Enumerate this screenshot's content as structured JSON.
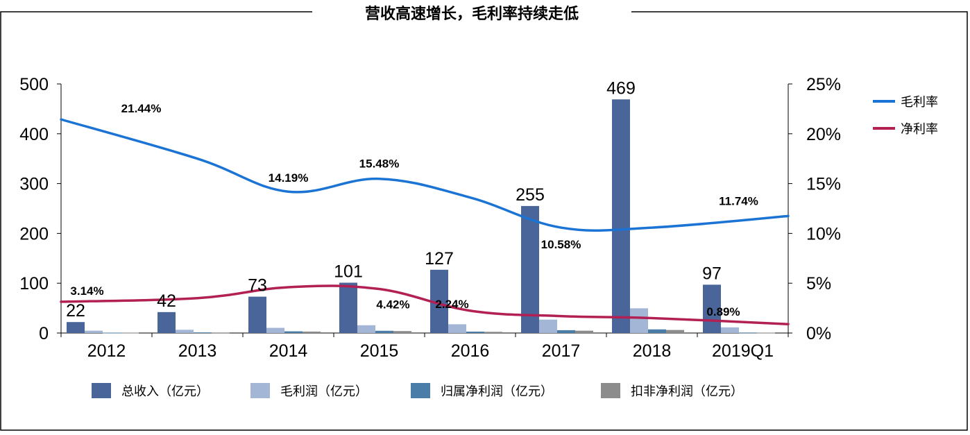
{
  "chart_data": {
    "type": "bar",
    "title": "营收高速增长，毛利率持续走低",
    "categories": [
      "2012",
      "2013",
      "2014",
      "2015",
      "2016",
      "2017",
      "2018",
      "2019Q1"
    ],
    "left_axis": {
      "ylim": [
        0,
        500
      ],
      "ticks": [
        "0",
        "100",
        "200",
        "300",
        "400",
        "500"
      ]
    },
    "right_axis": {
      "ylim": [
        0,
        25
      ],
      "unit": "%",
      "ticks": [
        "0%",
        "5%",
        "10%",
        "15%",
        "20%",
        "25%"
      ]
    },
    "series": [
      {
        "name": "总收入（亿元）",
        "type": "bar",
        "axis": "left",
        "color": "#4a6599",
        "values": [
          22,
          42,
          73,
          101,
          127,
          255,
          469,
          97
        ],
        "labels": [
          "22",
          "42",
          "73",
          "101",
          "127",
          "255",
          "469",
          "97"
        ]
      },
      {
        "name": "毛利润（亿元）",
        "type": "bar",
        "axis": "left",
        "color": "#a4b6d6",
        "values": [
          4.7,
          6.5,
          10.4,
          15.6,
          17.6,
          26.9,
          49.6,
          11.4
        ]
      },
      {
        "name": "归属净利润（亿元）",
        "type": "bar",
        "axis": "left",
        "color": "#4a7ea8",
        "values": [
          0.7,
          1.2,
          3.4,
          4.5,
          2.8,
          5.7,
          7.3,
          0.9
        ]
      },
      {
        "name": "扣非净利润（亿元）",
        "type": "bar",
        "axis": "left",
        "color": "#8c8c8c",
        "values": [
          0.6,
          1.0,
          2.9,
          3.9,
          2.4,
          4.7,
          6.1,
          0.8
        ]
      },
      {
        "name": "毛利率",
        "type": "line",
        "axis": "right",
        "color": "#1b74d4",
        "values": [
          21.44,
          17.5,
          14.19,
          15.48,
          13.6,
          10.58,
          10.58,
          11.74
        ]
      },
      {
        "name": "净利率",
        "type": "line",
        "axis": "right",
        "color": "#b22054",
        "values": [
          3.14,
          3.5,
          4.6,
          4.42,
          2.24,
          1.7,
          1.5,
          0.89
        ]
      }
    ],
    "rate_labels": {
      "gross": [
        {
          "index": 0,
          "text": "21.44%"
        },
        {
          "index": 2,
          "text": "14.19%"
        },
        {
          "index": 3,
          "text": "15.48%"
        },
        {
          "index": 5,
          "text": "10.58%"
        },
        {
          "index": 7,
          "text": "11.74%"
        }
      ],
      "net": [
        {
          "index": 0,
          "text": "3.14%"
        },
        {
          "index": 3,
          "text": "4.42%"
        },
        {
          "index": 4,
          "text": "2.24%"
        },
        {
          "index": 7,
          "text": "0.89%"
        }
      ]
    },
    "legend_lines": [
      "毛利率",
      "净利率"
    ],
    "legend_bars": [
      "总收入（亿元）",
      "毛利润（亿元）",
      "归属净利润（亿元）",
      "扣非净利润（亿元）"
    ],
    "legend_placement": "right (lines), bottom (bars)",
    "grid": false
  }
}
